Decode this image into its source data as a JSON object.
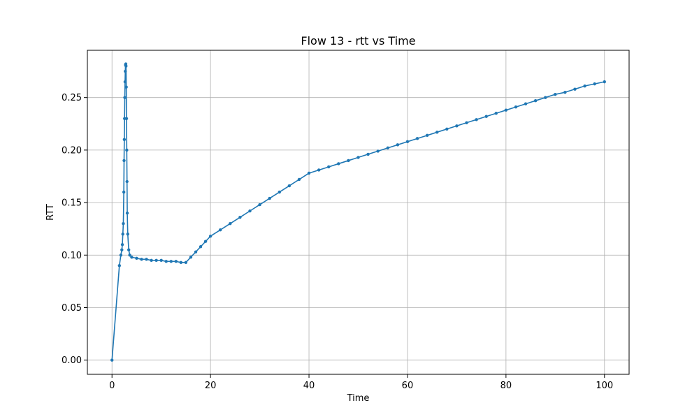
{
  "chart_data": {
    "type": "line",
    "title": "Flow 13 - rtt vs Time",
    "xlabel": "Time",
    "ylabel": "RTT",
    "xlim": [
      -5,
      105
    ],
    "ylim": [
      -0.0135,
      0.295
    ],
    "x_ticks": [
      0,
      20,
      40,
      60,
      80,
      100
    ],
    "y_ticks": [
      0.0,
      0.05,
      0.1,
      0.15,
      0.2,
      0.25
    ],
    "x_tick_labels": [
      "0",
      "20",
      "40",
      "60",
      "80",
      "100"
    ],
    "y_tick_labels": [
      "0.00",
      "0.05",
      "0.10",
      "0.15",
      "0.20",
      "0.25"
    ],
    "grid": true,
    "legend": "none",
    "series": [
      {
        "color": "#1f77b4",
        "marker": "circle",
        "x": [
          0,
          1.5,
          1.8,
          2.0,
          2.1,
          2.2,
          2.3,
          2.4,
          2.45,
          2.5,
          2.55,
          2.6,
          2.65,
          2.7,
          2.75,
          2.8,
          2.85,
          2.9,
          2.95,
          3.0,
          3.05,
          3.1,
          3.2,
          3.4,
          3.6,
          4,
          5,
          6,
          7,
          8,
          9,
          10,
          11,
          12,
          13,
          14,
          15,
          16,
          17,
          18,
          19,
          20,
          22,
          24,
          26,
          28,
          30,
          32,
          34,
          36,
          38,
          40,
          42,
          44,
          46,
          48,
          50,
          52,
          54,
          56,
          58,
          60,
          62,
          64,
          66,
          68,
          70,
          72,
          74,
          76,
          78,
          80,
          82,
          84,
          86,
          88,
          90,
          92,
          94,
          96,
          98,
          100
        ],
        "y": [
          0.0,
          0.09,
          0.1,
          0.105,
          0.11,
          0.12,
          0.13,
          0.16,
          0.19,
          0.21,
          0.23,
          0.25,
          0.265,
          0.275,
          0.281,
          0.282,
          0.28,
          0.26,
          0.23,
          0.2,
          0.17,
          0.14,
          0.12,
          0.105,
          0.1,
          0.098,
          0.097,
          0.096,
          0.096,
          0.095,
          0.095,
          0.095,
          0.094,
          0.094,
          0.094,
          0.093,
          0.093,
          0.098,
          0.103,
          0.108,
          0.113,
          0.118,
          0.124,
          0.13,
          0.136,
          0.142,
          0.148,
          0.154,
          0.16,
          0.166,
          0.172,
          0.178,
          0.181,
          0.184,
          0.187,
          0.19,
          0.193,
          0.196,
          0.199,
          0.202,
          0.205,
          0.208,
          0.211,
          0.214,
          0.217,
          0.22,
          0.223,
          0.226,
          0.229,
          0.232,
          0.235,
          0.238,
          0.241,
          0.244,
          0.247,
          0.25,
          0.253,
          0.255,
          0.258,
          0.261,
          0.263,
          0.265
        ]
      }
    ]
  }
}
